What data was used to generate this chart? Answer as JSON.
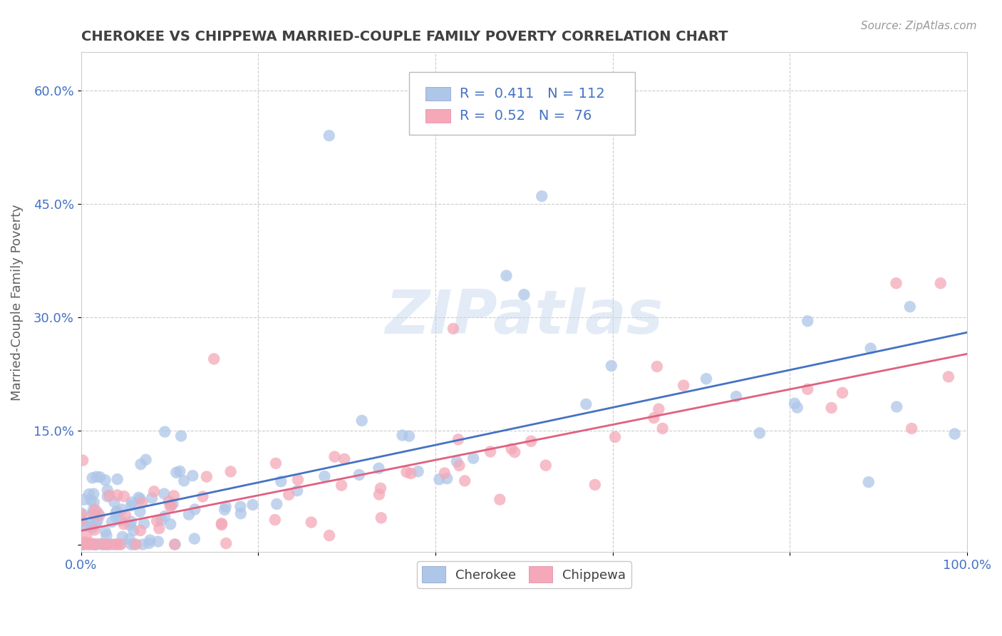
{
  "title": "CHEROKEE VS CHIPPEWA MARRIED-COUPLE FAMILY POVERTY CORRELATION CHART",
  "source": "Source: ZipAtlas.com",
  "ylabel": "Married-Couple Family Poverty",
  "xlim": [
    0,
    1
  ],
  "ylim": [
    -0.01,
    0.65
  ],
  "xticks": [
    0.0,
    0.2,
    0.4,
    0.6,
    0.8,
    1.0
  ],
  "xticklabels": [
    "0.0%",
    "",
    "",
    "",
    "",
    "100.0%"
  ],
  "yticks": [
    0.0,
    0.15,
    0.3,
    0.45,
    0.6
  ],
  "yticklabels": [
    "",
    "15.0%",
    "30.0%",
    "45.0%",
    "60.0%"
  ],
  "cherokee_color": "#aec6e8",
  "chippewa_color": "#f4a8b8",
  "cherokee_line_color": "#4472c4",
  "chippewa_line_color": "#e06080",
  "cherokee_R": 0.411,
  "cherokee_N": 112,
  "chippewa_R": 0.52,
  "chippewa_N": 76,
  "watermark": "ZIPatlas",
  "background_color": "#ffffff",
  "grid_color": "#cccccc",
  "title_color": "#404040",
  "axis_color": "#4472c4",
  "legend_label_color": "#4472c4"
}
